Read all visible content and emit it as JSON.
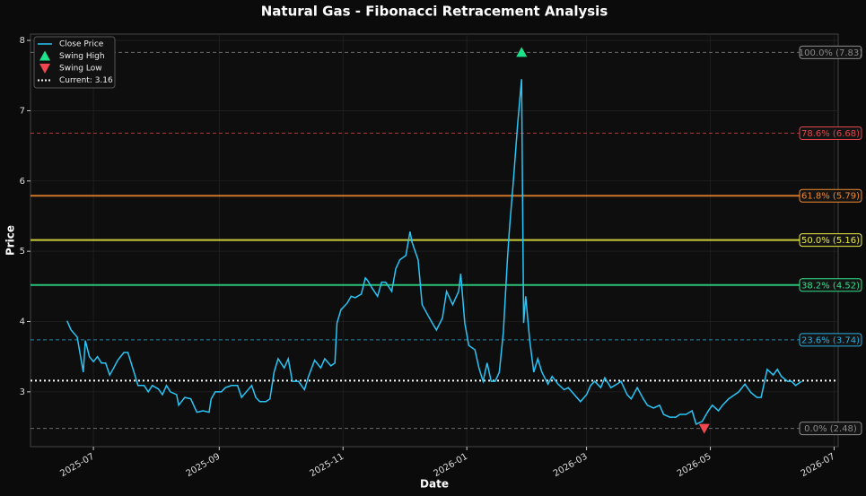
{
  "chart_data": {
    "type": "line",
    "title": "Natural Gas - Fibonacci Retracement Analysis",
    "xlabel": "Date",
    "ylabel": "Price",
    "x": [
      -13,
      -11,
      -8,
      -5,
      -4,
      -2,
      0,
      2,
      4,
      6,
      8,
      10,
      12,
      15,
      17,
      20,
      22,
      25,
      27,
      29,
      32,
      34,
      36,
      38,
      41,
      42,
      45,
      48,
      50,
      51,
      54,
      57,
      58,
      60,
      63,
      65,
      68,
      71,
      73,
      75,
      78,
      80,
      82,
      85,
      87,
      89,
      91,
      94,
      96,
      98,
      101,
      104,
      106,
      109,
      112,
      114,
      117,
      119,
      120,
      122,
      125,
      127,
      129,
      132,
      134,
      135,
      137,
      140,
      142,
      144,
      147,
      149,
      151,
      154,
      156,
      157,
      160,
      162,
      165,
      167,
      169,
      172,
      174,
      177,
      180,
      181,
      183,
      185,
      188,
      190,
      192,
      194,
      196,
      198,
      200,
      202,
      204,
      205,
      207,
      209,
      211,
      212,
      213,
      215,
      217,
      219,
      221,
      224,
      226,
      229,
      232,
      234,
      237,
      240,
      243,
      245,
      247,
      250,
      252,
      255,
      258,
      260,
      263,
      265,
      268,
      271,
      273,
      276,
      279,
      281,
      284,
      287,
      289,
      292,
      295,
      297,
      300,
      303,
      305,
      308,
      310,
      313,
      316,
      318,
      321,
      324,
      327,
      329,
      332,
      335,
      337,
      339,
      342,
      344,
      346,
      349
    ],
    "series": [
      {
        "name": "Close Price",
        "color": "#29c5f6",
        "values": [
          4.01,
          3.88,
          3.78,
          3.28,
          3.73,
          3.5,
          3.43,
          3.5,
          3.41,
          3.41,
          3.24,
          3.34,
          3.45,
          3.56,
          3.56,
          3.28,
          3.09,
          3.09,
          3.0,
          3.09,
          3.04,
          2.96,
          3.09,
          3.0,
          2.96,
          2.81,
          2.92,
          2.9,
          2.77,
          2.71,
          2.73,
          2.71,
          2.9,
          3.0,
          3.0,
          3.06,
          3.09,
          3.09,
          2.92,
          2.99,
          3.09,
          2.92,
          2.86,
          2.86,
          2.9,
          3.28,
          3.47,
          3.34,
          3.47,
          3.15,
          3.15,
          3.03,
          3.22,
          3.45,
          3.34,
          3.47,
          3.37,
          3.41,
          3.98,
          4.17,
          4.26,
          4.36,
          4.34,
          4.39,
          4.62,
          4.59,
          4.49,
          4.36,
          4.56,
          4.56,
          4.43,
          4.75,
          4.88,
          4.94,
          5.28,
          5.13,
          4.88,
          4.24,
          4.08,
          3.98,
          3.88,
          4.05,
          4.43,
          4.24,
          4.43,
          4.68,
          3.98,
          3.66,
          3.6,
          3.34,
          3.15,
          3.41,
          3.15,
          3.15,
          3.28,
          3.85,
          4.88,
          5.32,
          6.02,
          6.79,
          7.45,
          3.98,
          4.36,
          3.73,
          3.28,
          3.47,
          3.28,
          3.11,
          3.22,
          3.11,
          3.03,
          3.06,
          2.96,
          2.86,
          2.96,
          3.09,
          3.15,
          3.06,
          3.2,
          3.06,
          3.11,
          3.15,
          2.96,
          2.9,
          3.06,
          2.9,
          2.81,
          2.77,
          2.81,
          2.68,
          2.64,
          2.64,
          2.68,
          2.68,
          2.73,
          2.54,
          2.58,
          2.73,
          2.81,
          2.73,
          2.81,
          2.9,
          2.96,
          3.0,
          3.11,
          2.99,
          2.92,
          2.92,
          3.32,
          3.24,
          3.32,
          3.22,
          3.15,
          3.15,
          3.09,
          3.15
        ]
      }
    ],
    "swing_high": {
      "name": "Swing High",
      "x": 211,
      "value": 7.83,
      "color": "#1de38a"
    },
    "swing_low": {
      "name": "Swing Low",
      "x": 301,
      "value": 2.48,
      "color": "#f0484e"
    },
    "current": {
      "name": "Current: 3.16",
      "value": 3.16,
      "color": "#ffffff"
    },
    "fib_levels": [
      {
        "label": "100.0% (7.83)",
        "value": 7.83,
        "color": "#8a8a8a",
        "style": "dashed"
      },
      {
        "label": "78.6% (6.68)",
        "value": 6.68,
        "color": "#e0474c",
        "style": "dashed"
      },
      {
        "label": "61.8% (5.79)",
        "value": 5.79,
        "color": "#f08a30",
        "style": "solid"
      },
      {
        "label": "50.0% (5.16)",
        "value": 5.16,
        "color": "#ecec45",
        "style": "solid"
      },
      {
        "label": "38.2% (4.52)",
        "value": 4.52,
        "color": "#2fe08a",
        "style": "solid"
      },
      {
        "label": "23.6% (3.74)",
        "value": 3.74,
        "color": "#2aaee0",
        "style": "dashed"
      },
      {
        "label": "0.0% (2.48)",
        "value": 2.48,
        "color": "#8a8a8a",
        "style": "dashed"
      }
    ],
    "xlim": [
      -31,
      367
    ],
    "ylim": [
      2.22,
      8.09
    ],
    "xticks": [
      {
        "value": 0,
        "label": "2025-07"
      },
      {
        "value": 62,
        "label": "2025-09"
      },
      {
        "value": 123,
        "label": "2025-11"
      },
      {
        "value": 184,
        "label": "2026-01"
      },
      {
        "value": 243,
        "label": "2026-03"
      },
      {
        "value": 304,
        "label": "2026-05"
      },
      {
        "value": 365,
        "label": "2026-07"
      }
    ],
    "yticks": [
      3,
      4,
      5,
      6,
      7,
      8
    ],
    "grid": true,
    "legend": "upper left"
  }
}
